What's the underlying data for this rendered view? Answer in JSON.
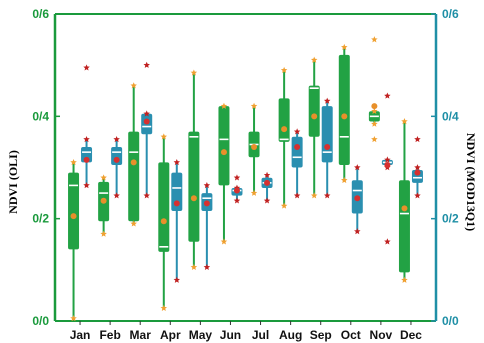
{
  "chart_data": {
    "type": "box",
    "categories": [
      "Jan",
      "Feb",
      "Mar",
      "Apr",
      "May",
      "Jun",
      "Jul",
      "Aug",
      "Sep",
      "Oct",
      "Nov",
      "Dec"
    ],
    "ylabel_left": "NDVI (OLI)",
    "ylabel_right": "NDVI (MOD13Q1)",
    "yticks_left": [
      "0/0",
      "0/2",
      "0/4",
      "0/6"
    ],
    "yticks_right": [
      "0/0",
      "0/2",
      "0/4",
      "0/6"
    ],
    "ylim": [
      0,
      0.6
    ],
    "colors": {
      "left_axis": "#1a9a3c",
      "right_axis": "#1f8fa6",
      "oli_box": "#22a244",
      "modis_box": "#2a8fb0",
      "mean_marker": "#e8902a",
      "outlier_star": "#f0a030",
      "modis_mean": "#d63030",
      "modis_outlier": "#c02020"
    },
    "series": [
      {
        "name": "OLI",
        "stats": [
          {
            "min": 0.005,
            "q1": 0.14,
            "median": 0.265,
            "q3": 0.29,
            "max": 0.31,
            "mean": 0.205,
            "outliers": []
          },
          {
            "min": 0.17,
            "q1": 0.195,
            "median": 0.25,
            "q3": 0.272,
            "max": 0.28,
            "mean": 0.235,
            "outliers": []
          },
          {
            "min": 0.19,
            "q1": 0.195,
            "median": 0.33,
            "q3": 0.37,
            "max": 0.46,
            "mean": 0.31,
            "outliers": []
          },
          {
            "min": 0.025,
            "q1": 0.135,
            "median": 0.145,
            "q3": 0.31,
            "max": 0.36,
            "mean": 0.195,
            "outliers": []
          },
          {
            "min": 0.105,
            "q1": 0.155,
            "median": 0.36,
            "q3": 0.37,
            "max": 0.485,
            "mean": 0.24,
            "outliers": []
          },
          {
            "min": 0.155,
            "q1": 0.265,
            "median": 0.355,
            "q3": 0.42,
            "max": 0.42,
            "mean": 0.33,
            "outliers": []
          },
          {
            "min": 0.25,
            "q1": 0.32,
            "median": 0.345,
            "q3": 0.37,
            "max": 0.42,
            "mean": 0.34,
            "outliers": []
          },
          {
            "min": 0.225,
            "q1": 0.35,
            "median": 0.355,
            "q3": 0.435,
            "max": 0.49,
            "mean": 0.375,
            "outliers": []
          },
          {
            "min": 0.245,
            "q1": 0.36,
            "median": 0.455,
            "q3": 0.46,
            "max": 0.51,
            "mean": 0.4,
            "outliers": []
          },
          {
            "min": 0.275,
            "q1": 0.305,
            "median": 0.36,
            "q3": 0.52,
            "max": 0.535,
            "mean": 0.4,
            "outliers": []
          },
          {
            "min": 0.385,
            "q1": 0.39,
            "median": 0.4,
            "q3": 0.41,
            "max": 0.41,
            "mean": 0.42,
            "outliers": [
              0.55,
              0.355
            ]
          },
          {
            "min": 0.08,
            "q1": 0.095,
            "median": 0.21,
            "q3": 0.275,
            "max": 0.39,
            "mean": 0.22,
            "outliers": []
          }
        ]
      },
      {
        "name": "MOD13Q1",
        "stats": [
          {
            "min": 0.265,
            "q1": 0.31,
            "median": 0.33,
            "q3": 0.34,
            "max": 0.355,
            "mean": 0.315,
            "outliers": [
              0.495
            ]
          },
          {
            "min": 0.245,
            "q1": 0.305,
            "median": 0.33,
            "q3": 0.34,
            "max": 0.355,
            "mean": 0.315,
            "outliers": []
          },
          {
            "min": 0.245,
            "q1": 0.365,
            "median": 0.38,
            "q3": 0.405,
            "max": 0.405,
            "mean": 0.39,
            "outliers": [
              0.5
            ]
          },
          {
            "min": 0.08,
            "q1": 0.215,
            "median": 0.26,
            "q3": 0.29,
            "max": 0.31,
            "mean": 0.23,
            "outliers": []
          },
          {
            "min": 0.105,
            "q1": 0.215,
            "median": 0.24,
            "q3": 0.25,
            "max": 0.265,
            "mean": 0.23,
            "outliers": []
          },
          {
            "min": 0.235,
            "q1": 0.245,
            "median": 0.255,
            "q3": 0.26,
            "max": 0.26,
            "mean": 0.255,
            "outliers": [
              0.28
            ]
          },
          {
            "min": 0.235,
            "q1": 0.26,
            "median": 0.27,
            "q3": 0.28,
            "max": 0.285,
            "mean": 0.27,
            "outliers": []
          },
          {
            "min": 0.245,
            "q1": 0.3,
            "median": 0.32,
            "q3": 0.36,
            "max": 0.37,
            "mean": 0.34,
            "outliers": []
          },
          {
            "min": 0.245,
            "q1": 0.31,
            "median": 0.33,
            "q3": 0.42,
            "max": 0.43,
            "mean": 0.34,
            "outliers": []
          },
          {
            "min": 0.175,
            "q1": 0.21,
            "median": 0.255,
            "q3": 0.275,
            "max": 0.3,
            "mean": 0.24,
            "outliers": []
          },
          {
            "min": 0.3,
            "q1": 0.305,
            "median": 0.31,
            "q3": 0.315,
            "max": 0.315,
            "mean": 0.305,
            "outliers": [
              0.44,
              0.155
            ]
          },
          {
            "min": 0.245,
            "q1": 0.27,
            "median": 0.28,
            "q3": 0.295,
            "max": 0.3,
            "mean": 0.29,
            "outliers": [
              0.355
            ]
          }
        ]
      }
    ]
  }
}
